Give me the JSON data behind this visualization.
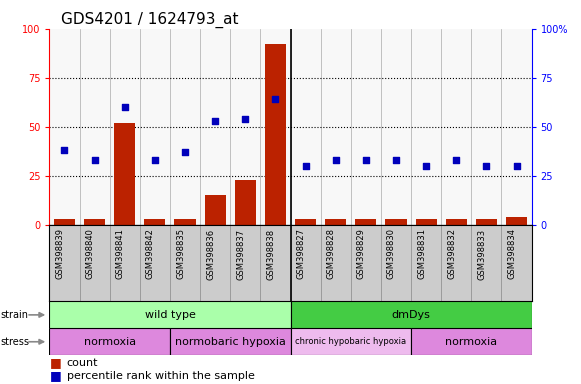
{
  "title": "GDS4201 / 1624793_at",
  "samples": [
    "GSM398839",
    "GSM398840",
    "GSM398841",
    "GSM398842",
    "GSM398835",
    "GSM398836",
    "GSM398837",
    "GSM398838",
    "GSM398827",
    "GSM398828",
    "GSM398829",
    "GSM398830",
    "GSM398831",
    "GSM398832",
    "GSM398833",
    "GSM398834"
  ],
  "count": [
    3,
    3,
    52,
    3,
    3,
    15,
    23,
    92,
    3,
    3,
    3,
    3,
    3,
    3,
    3,
    4
  ],
  "percentile": [
    38,
    33,
    60,
    33,
    37,
    53,
    54,
    64,
    30,
    33,
    33,
    33,
    30,
    33,
    30,
    30
  ],
  "yticks": [
    0,
    25,
    50,
    75,
    100
  ],
  "strain_groups": [
    {
      "label": "wild type",
      "start": 0,
      "end": 8,
      "color": "#aaffaa"
    },
    {
      "label": "dmDys",
      "start": 8,
      "end": 16,
      "color": "#44cc44"
    }
  ],
  "stress_groups": [
    {
      "label": "normoxia",
      "start": 0,
      "end": 4,
      "color": "#dd88dd"
    },
    {
      "label": "normobaric hypoxia",
      "start": 4,
      "end": 8,
      "color": "#dd88dd"
    },
    {
      "label": "chronic hypobaric hypoxia",
      "start": 8,
      "end": 12,
      "color": "#eeaaee"
    },
    {
      "label": "normoxia",
      "start": 12,
      "end": 16,
      "color": "#dd88dd"
    }
  ],
  "bar_color": "#bb2200",
  "dot_color": "#0000bb",
  "background_color": "#ffffff",
  "sample_bg": "#cccccc",
  "title_fontsize": 11,
  "tick_fontsize": 7,
  "sample_fontsize": 6,
  "annotation_fontsize": 8,
  "legend_fontsize": 8
}
